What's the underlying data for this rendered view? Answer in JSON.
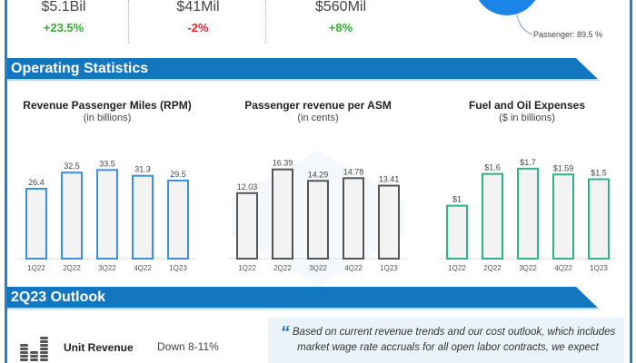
{
  "top_stats": [
    {
      "value": "$5.1Bil",
      "change": "+23.5%",
      "trend": "up"
    },
    {
      "value": "$41Mil",
      "change": "-2%",
      "trend": "down"
    },
    {
      "value": "$560Mil",
      "change": "+8%",
      "trend": "up"
    }
  ],
  "pie": {
    "label": "Passenger: 89.5 %",
    "value": 89.5,
    "color": "#1a85e6"
  },
  "colors": {
    "accent": "#1377c0",
    "positive": "#3aaa35",
    "negative": "#d9262c"
  },
  "sections": {
    "operating": "Operating Statistics",
    "outlook": "2Q23 Outlook"
  },
  "chart_data": [
    {
      "type": "bar",
      "title": "Revenue Passenger Miles (RPM)",
      "subtitle": "(in billions)",
      "categories": [
        "1Q22",
        "2Q22",
        "3Q22",
        "4Q22",
        "1Q23"
      ],
      "values": [
        26.4,
        32.5,
        33.5,
        31.3,
        29.5
      ],
      "labels": [
        "26.4",
        "32.5",
        "33.5",
        "31.3",
        "29.5"
      ],
      "color": "#3a8fe0",
      "ylim": [
        0,
        36
      ]
    },
    {
      "type": "bar",
      "title": "Passenger revenue per ASM",
      "subtitle": "(in cents)",
      "categories": [
        "1Q22",
        "2Q22",
        "3Q22",
        "4Q22",
        "1Q23"
      ],
      "values": [
        12.03,
        16.39,
        14.29,
        14.78,
        13.41
      ],
      "labels": [
        "12.03",
        "16.39",
        "14.29",
        "14.78",
        "13.41"
      ],
      "color": "#555555",
      "ylim": [
        0,
        17.5
      ]
    },
    {
      "type": "bar",
      "title": "Fuel and Oil Expenses",
      "subtitle": "($ in billions)",
      "categories": [
        "1Q22",
        "2Q22",
        "3Q22",
        "4Q22",
        "1Q23"
      ],
      "values": [
        1.0,
        1.6,
        1.7,
        1.59,
        1.5
      ],
      "labels": [
        "$1",
        "$1.6",
        "$1.7",
        "$1.59",
        "$1.5"
      ],
      "color": "#2db38a",
      "ylim": [
        0,
        1.8
      ]
    }
  ],
  "outlook": {
    "icon": "coins-stack-icon",
    "metric": "Unit Revenue",
    "value": "Down 8-11%",
    "quote_mark": "“",
    "quote": "Based on current revenue trends and our cost outlook, which includes market wage rate accruals for all open labor contracts, we expect"
  }
}
